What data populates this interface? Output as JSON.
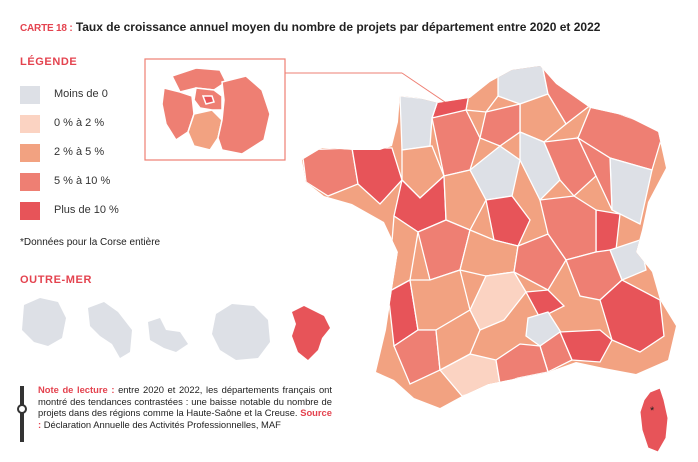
{
  "title": {
    "tag": "CARTE 18 :",
    "text": "Taux de croissance annuel moyen du nombre de projets par département entre 2020 et 2022"
  },
  "legend": {
    "heading": "LÉGENDE",
    "items": [
      {
        "label": "Moins de 0",
        "color": "#dde0e6"
      },
      {
        "label": "0 % à 2 %",
        "color": "#fbd3c2"
      },
      {
        "label": "2 % à 5 %",
        "color": "#f2a281"
      },
      {
        "label": "5 % à 10 %",
        "color": "#ee7f73"
      },
      {
        "label": "Plus de 10 %",
        "color": "#e75459"
      }
    ]
  },
  "corse_note": "*Données pour la Corse entière",
  "outre_mer": {
    "heading": "OUTRE-MER",
    "territories": [
      {
        "name": "guadeloupe-icon",
        "color": "#dde0e6"
      },
      {
        "name": "martinique-icon",
        "color": "#dde0e6"
      },
      {
        "name": "guyane-icon",
        "color": "#dde0e6"
      },
      {
        "name": "reunion-icon",
        "color": "#dde0e6"
      },
      {
        "name": "mayotte-icon",
        "color": "#e75459"
      }
    ]
  },
  "reading_note": {
    "label": "Note de lecture :",
    "text": " entre 2020 et 2022, les départements français ont montré des tendances contrastées : une baisse notable du nombre de projets dans des régions comme la Haute-Saône et la Creuse. ",
    "source_label": "Source :",
    "source_text": " Déclaration Annuelle des Activités Professionnelles, MAF"
  },
  "corse_marker": "*"
}
